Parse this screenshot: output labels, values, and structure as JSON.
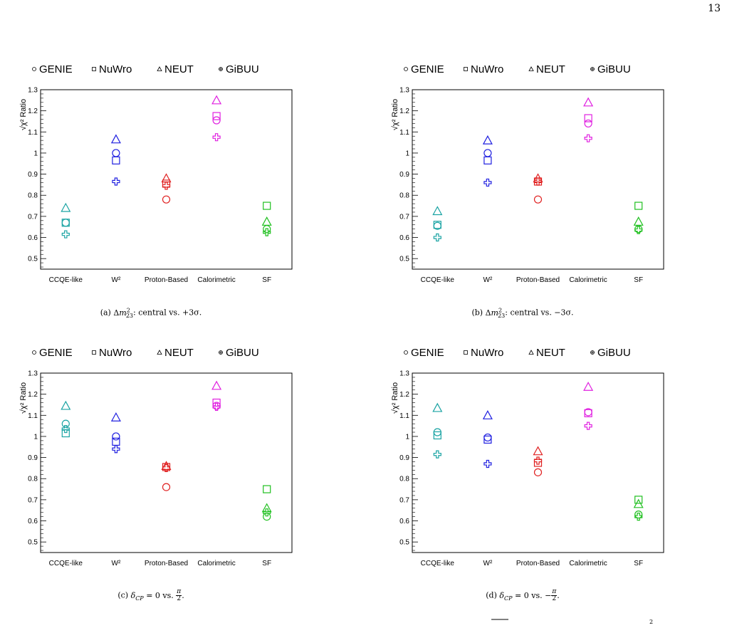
{
  "page": {
    "number": "13"
  },
  "legend": {
    "entries": [
      {
        "label": "GENIE",
        "marker": "circle"
      },
      {
        "label": "NuWro",
        "marker": "square"
      },
      {
        "label": "NEUT",
        "marker": "triangle"
      },
      {
        "label": "GiBUU",
        "marker": "cross"
      }
    ]
  },
  "colors": {
    "CCQE-like": "#1aa3a3",
    "W2": "#2020e0",
    "Proton-Based": "#e02020",
    "Calorimetric": "#e020e0",
    "SF": "#20c020"
  },
  "chart_data": [
    {
      "type": "scatter",
      "panel": "a",
      "caption": {
        "prefix": "(a) ",
        "suffix": ": central vs. +3σ."
      },
      "ylabel": "√χ² Ratio",
      "ylim": [
        0.45,
        1.3
      ],
      "yticks": [
        "0.5",
        "0.6",
        "0.7",
        "0.8",
        "0.9",
        "1",
        "1.1",
        "1.2",
        "1.3"
      ],
      "categories": [
        "CCQE-like",
        "W²",
        "Proton-Based",
        "Calorimetric",
        "SF"
      ],
      "series": [
        {
          "name": "GENIE",
          "values": [
            0.67,
            1.0,
            0.78,
            1.155,
            0.64
          ]
        },
        {
          "name": "NuWro",
          "values": [
            0.67,
            0.965,
            0.855,
            1.175,
            0.75
          ]
        },
        {
          "name": "NEUT",
          "values": [
            0.74,
            1.065,
            0.88,
            1.25,
            0.675
          ]
        },
        {
          "name": "GiBUU",
          "values": [
            0.615,
            0.865,
            0.845,
            1.075,
            0.625
          ]
        }
      ]
    },
    {
      "type": "scatter",
      "panel": "b",
      "caption": {
        "prefix": "(b) ",
        "suffix": ": central vs. −3σ."
      },
      "ylabel": "√χ² Ratio",
      "ylim": [
        0.45,
        1.3
      ],
      "yticks": [
        "0.5",
        "0.6",
        "0.7",
        "0.8",
        "0.9",
        "1",
        "1.1",
        "1.2",
        "1.3"
      ],
      "categories": [
        "CCQE-like",
        "W²",
        "Proton-Based",
        "Calorimetric",
        "SF"
      ],
      "series": [
        {
          "name": "GENIE",
          "values": [
            0.655,
            1.0,
            0.78,
            1.14,
            0.64
          ]
        },
        {
          "name": "NuWro",
          "values": [
            0.66,
            0.965,
            0.865,
            1.165,
            0.75
          ]
        },
        {
          "name": "NEUT",
          "values": [
            0.725,
            1.06,
            0.88,
            1.24,
            0.675
          ]
        },
        {
          "name": "GiBUU",
          "values": [
            0.6,
            0.86,
            0.865,
            1.07,
            0.635
          ]
        }
      ]
    },
    {
      "type": "scatter",
      "panel": "c",
      "caption": {
        "prefix": "(c) ",
        "suffix": ""
      },
      "ylabel": "√χ² Ratio",
      "ylim": [
        0.45,
        1.3
      ],
      "yticks": [
        "0.5",
        "0.6",
        "0.7",
        "0.8",
        "0.9",
        "1",
        "1.1",
        "1.2",
        "1.3"
      ],
      "categories": [
        "CCQE-like",
        "W²",
        "Proton-Based",
        "Calorimetric",
        "SF"
      ],
      "series": [
        {
          "name": "GENIE",
          "values": [
            1.06,
            1.0,
            0.76,
            1.145,
            0.62
          ]
        },
        {
          "name": "NuWro",
          "values": [
            1.015,
            0.975,
            0.855,
            1.16,
            0.75
          ]
        },
        {
          "name": "NEUT",
          "values": [
            1.145,
            1.09,
            0.86,
            1.24,
            0.66
          ]
        },
        {
          "name": "GiBUU",
          "values": [
            1.035,
            0.94,
            0.85,
            1.14,
            0.64
          ]
        }
      ]
    },
    {
      "type": "scatter",
      "panel": "d",
      "caption": {
        "prefix": "(d) ",
        "suffix": ""
      },
      "ylabel": "√χ² Ratio",
      "ylim": [
        0.45,
        1.3
      ],
      "yticks": [
        "0.5",
        "0.6",
        "0.7",
        "0.8",
        "0.9",
        "1",
        "1.1",
        "1.2",
        "1.3"
      ],
      "categories": [
        "CCQE-like",
        "W²",
        "Proton-Based",
        "Calorimetric",
        "SF"
      ],
      "series": [
        {
          "name": "GENIE",
          "values": [
            1.02,
            0.995,
            0.83,
            1.115,
            0.63
          ]
        },
        {
          "name": "NuWro",
          "values": [
            1.005,
            0.985,
            0.875,
            1.11,
            0.7
          ]
        },
        {
          "name": "NEUT",
          "values": [
            1.135,
            1.1,
            0.93,
            1.235,
            0.68
          ]
        },
        {
          "name": "GiBUU",
          "values": [
            0.915,
            0.87,
            0.885,
            1.05,
            0.62
          ]
        }
      ]
    }
  ]
}
